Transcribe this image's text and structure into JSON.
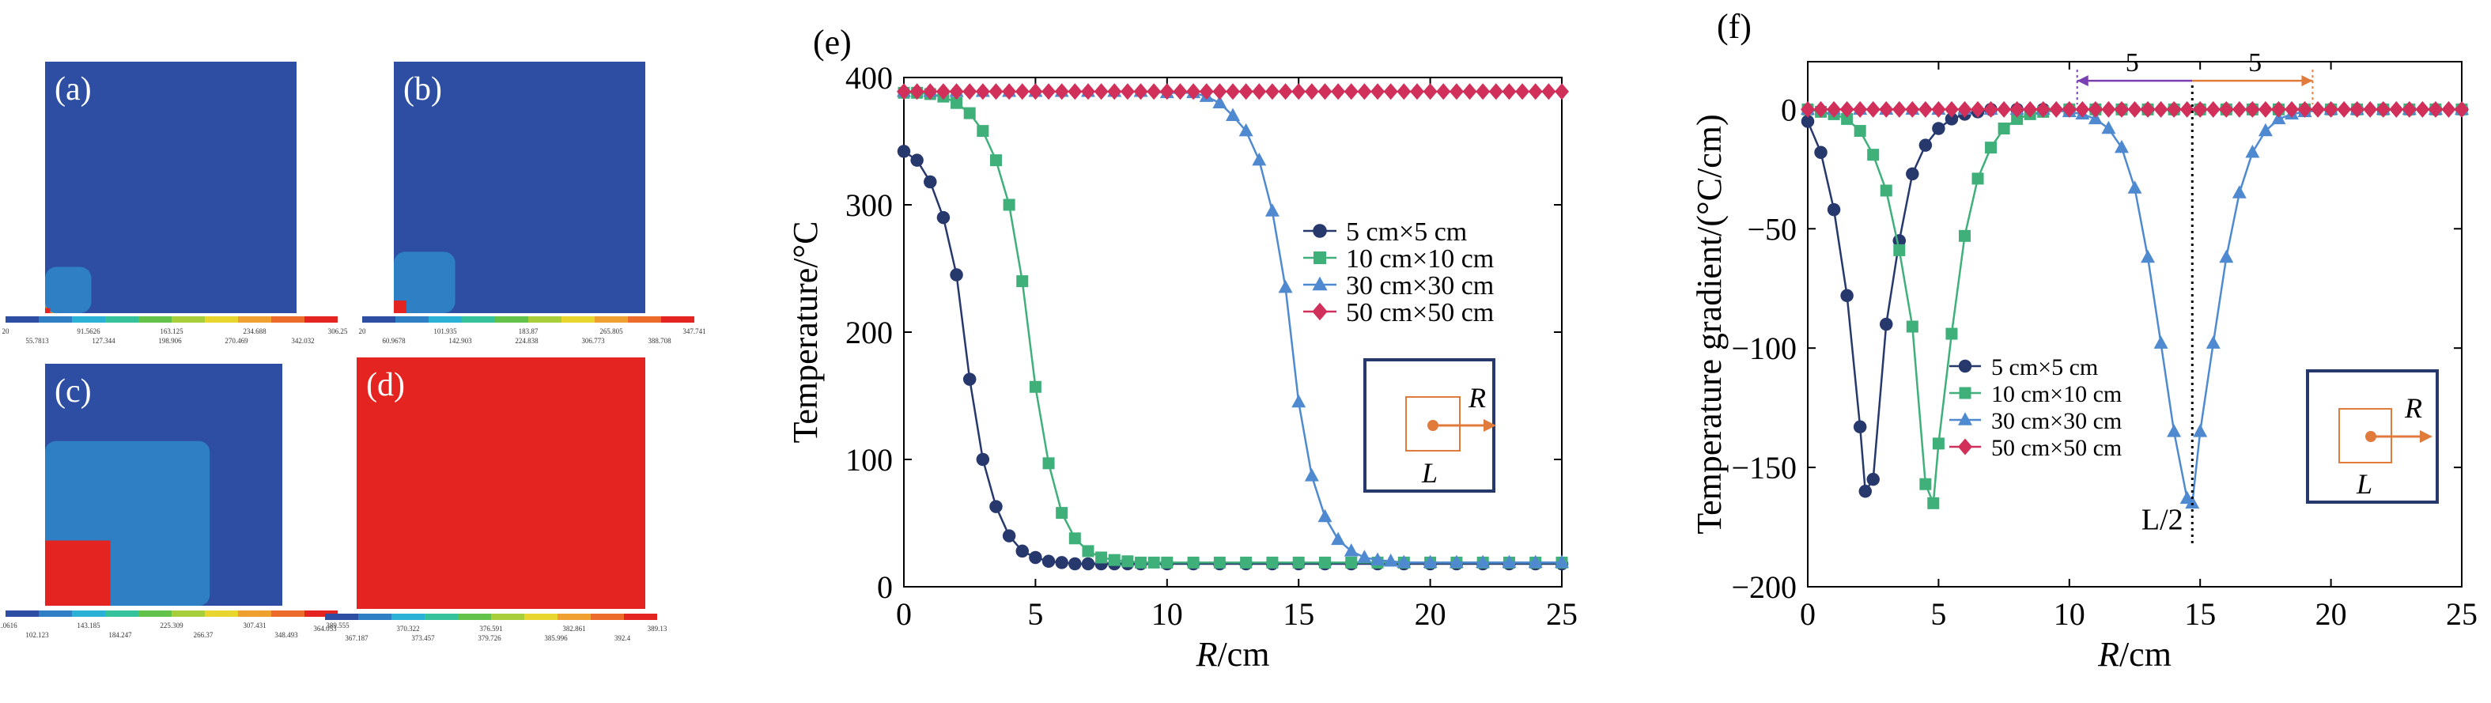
{
  "colors": {
    "navy": "#27386d",
    "green": "#3fb07a",
    "lightblue": "#4f8ad1",
    "magenta": "#d0305a",
    "orange": "#e07b3c",
    "purple": "#7a3fb0",
    "contour_blue": "#2d4ea2",
    "contour_red": "#e32421"
  },
  "thumbnails": [
    {
      "label": "(a)",
      "hot_fraction": 0.04,
      "colorbar_row1": [
        "20",
        "91.5626",
        "163.125",
        "234.688",
        "306.25"
      ],
      "colorbar_row2": [
        "55.7813",
        "127.344",
        "198.906",
        "270.469",
        "342.032"
      ]
    },
    {
      "label": "(b)",
      "hot_fraction": 0.1,
      "colorbar_row1": [
        "20",
        "101.935",
        "183.87",
        "265.805",
        "347.741"
      ],
      "colorbar_row2": [
        "60.9678",
        "142.903",
        "224.838",
        "306.773",
        "388.708"
      ]
    },
    {
      "label": "(c)",
      "hot_fraction": 0.55,
      "colorbar_row1": [
        "61.0616",
        "143.185",
        "225.309",
        "307.431",
        "389.555"
      ],
      "colorbar_row2": [
        "102.123",
        "184.247",
        "266.37",
        "348.493"
      ]
    },
    {
      "label": "(d)",
      "hot_fraction": 1.0,
      "colorbar_row1": [
        "364.053",
        "370.322",
        "376.591",
        "382.861",
        "389.13"
      ],
      "colorbar_row2": [
        "367.187",
        "373.457",
        "379.726",
        "385.996",
        "392.4"
      ]
    }
  ],
  "chart_data": [
    {
      "type": "line",
      "panel_label": "(e)",
      "xlabel_italic": "R",
      "xlabel_unit": "/cm",
      "ylabel": "Temperature/°C",
      "xlim": [
        0,
        25
      ],
      "ylim": [
        0,
        400
      ],
      "xticks": [
        0,
        5,
        10,
        15,
        20,
        25
      ],
      "yticks": [
        0,
        100,
        200,
        300,
        400
      ],
      "legend_position": "right-middle",
      "series": [
        {
          "name": "5 cm×5 cm",
          "marker": "circle",
          "color": "#27386d",
          "x": [
            0,
            0.5,
            1.0,
            1.5,
            2.0,
            2.5,
            3.0,
            3.5,
            4.0,
            4.5,
            5.0,
            5.5,
            6.0,
            6.5,
            7.0,
            7.5,
            8.0,
            8.5,
            9.0,
            10,
            11,
            12,
            13,
            14,
            15,
            16,
            17,
            18,
            19,
            20,
            21,
            22,
            23,
            24,
            25
          ],
          "y": [
            342,
            335,
            318,
            290,
            245,
            163,
            100,
            63,
            40,
            28,
            23,
            20,
            19,
            18,
            18,
            18,
            18,
            18,
            18,
            18,
            18,
            18,
            18,
            18,
            18,
            18,
            18,
            18,
            18,
            18,
            18,
            18,
            18,
            18,
            18
          ]
        },
        {
          "name": "10 cm×10 cm",
          "marker": "square",
          "color": "#3fb07a",
          "x": [
            0,
            0.5,
            1.0,
            1.5,
            2.0,
            2.5,
            3.0,
            3.5,
            4.0,
            4.5,
            5.0,
            5.5,
            6.0,
            6.5,
            7.0,
            7.5,
            8.0,
            8.5,
            9.0,
            9.5,
            10,
            11,
            12,
            13,
            14,
            15,
            16,
            17,
            18,
            19,
            20,
            21,
            22,
            23,
            24,
            25
          ],
          "y": [
            388,
            388,
            387,
            385,
            380,
            372,
            358,
            335,
            300,
            240,
            157,
            97,
            58,
            38,
            28,
            23,
            21,
            20,
            19,
            19,
            19,
            19,
            19,
            19,
            19,
            19,
            19,
            19,
            19,
            19,
            19,
            19,
            19,
            19,
            19,
            19
          ]
        },
        {
          "name": "30 cm×30 cm",
          "marker": "triangle",
          "color": "#4f8ad1",
          "x": [
            0,
            1,
            2,
            3,
            4,
            5,
            6,
            7,
            8,
            9,
            10,
            11,
            11.5,
            12,
            12.5,
            13,
            13.5,
            14,
            14.5,
            15,
            15.5,
            16,
            16.5,
            17,
            17.5,
            18,
            18.5,
            19,
            20,
            21,
            22,
            23,
            24,
            25
          ],
          "y": [
            389,
            389,
            389,
            389,
            389,
            389,
            389,
            389,
            389,
            389,
            388,
            388,
            385,
            380,
            370,
            358,
            335,
            295,
            235,
            145,
            87,
            55,
            37,
            28,
            23,
            21,
            20,
            19,
            19,
            19,
            19,
            19,
            19,
            19
          ]
        },
        {
          "name": "50 cm×50 cm",
          "marker": "diamond",
          "color": "#d0305a",
          "x": [
            0,
            0.5,
            1,
            1.5,
            2,
            2.5,
            3,
            3.5,
            4,
            4.5,
            5,
            5.5,
            6,
            6.5,
            7,
            7.5,
            8,
            8.5,
            9,
            9.5,
            10,
            10.5,
            11,
            11.5,
            12,
            12.5,
            13,
            13.5,
            14,
            14.5,
            15,
            15.5,
            16,
            16.5,
            17,
            17.5,
            18,
            18.5,
            19,
            19.5,
            20,
            20.5,
            21,
            21.5,
            22,
            22.5,
            23,
            23.5,
            24,
            24.5,
            25
          ],
          "y": [
            389,
            389,
            389,
            389,
            389,
            389,
            389,
            389,
            389,
            389,
            389,
            389,
            389,
            389,
            389,
            389,
            389,
            389,
            389,
            389,
            389,
            389,
            389,
            389,
            389,
            389,
            389,
            389,
            389,
            389,
            389,
            389,
            389,
            389,
            389,
            389,
            389,
            389,
            389,
            389,
            389,
            389,
            389,
            389,
            389,
            389,
            389,
            389,
            389,
            389,
            389
          ]
        }
      ],
      "inset": {
        "R": "R",
        "L": "L"
      }
    },
    {
      "type": "line",
      "panel_label": "(f)",
      "xlabel_italic": "R",
      "xlabel_unit": "/cm",
      "ylabel": "Temperature gradient/(°C/cm)",
      "xlim": [
        0,
        25
      ],
      "ylim": [
        -200,
        20
      ],
      "xticks": [
        0,
        5,
        10,
        15,
        20,
        25
      ],
      "yticks": [
        -200,
        -150,
        -100,
        -50,
        0
      ],
      "legend_position": "lower-left",
      "annotations": {
        "half_L": "L/2",
        "span_left": "5",
        "span_right": "5",
        "half_L_x": 14.7
      },
      "series": [
        {
          "name": "5 cm×5 cm",
          "marker": "circle",
          "color": "#27386d",
          "x": [
            0,
            0.5,
            1.0,
            1.5,
            2.0,
            2.2,
            2.5,
            3.0,
            3.5,
            4.0,
            4.5,
            5.0,
            5.5,
            6.0,
            6.5,
            7.0,
            8,
            9,
            10,
            11,
            12,
            13,
            14,
            15,
            16,
            17,
            18,
            19,
            20,
            21,
            22,
            23,
            24,
            25
          ],
          "y": [
            -5,
            -18,
            -42,
            -78,
            -133,
            -160,
            -155,
            -90,
            -55,
            -27,
            -15,
            -8,
            -4,
            -2,
            -1,
            0,
            0,
            0,
            0,
            0,
            0,
            0,
            0,
            0,
            0,
            0,
            0,
            0,
            0,
            0,
            0,
            0,
            0,
            0
          ]
        },
        {
          "name": "10 cm×10 cm",
          "marker": "square",
          "color": "#3fb07a",
          "x": [
            0,
            0.5,
            1.0,
            1.5,
            2.0,
            2.5,
            3.0,
            3.5,
            4.0,
            4.5,
            4.8,
            5.0,
            5.5,
            6.0,
            6.5,
            7.0,
            7.5,
            8.0,
            8.5,
            9.0,
            10,
            11,
            12,
            13,
            14,
            15,
            16,
            17,
            18,
            19,
            20,
            21,
            22,
            23,
            24,
            25
          ],
          "y": [
            0,
            -1,
            -2,
            -4,
            -9,
            -19,
            -34,
            -59,
            -91,
            -157,
            -165,
            -140,
            -94,
            -53,
            -29,
            -16,
            -8,
            -4,
            -2,
            -1,
            0,
            0,
            0,
            0,
            0,
            0,
            0,
            0,
            0,
            0,
            0,
            0,
            0,
            0,
            0,
            0
          ]
        },
        {
          "name": "30 cm×30 cm",
          "marker": "triangle",
          "color": "#4f8ad1",
          "x": [
            0,
            1,
            2,
            3,
            4,
            5,
            6,
            7,
            8,
            9,
            10,
            10.5,
            11,
            11.5,
            12,
            12.5,
            13,
            13.5,
            14,
            14.5,
            14.7,
            15,
            15.5,
            16,
            16.5,
            17,
            17.5,
            18,
            18.5,
            19,
            20,
            21,
            22,
            23,
            24,
            25
          ],
          "y": [
            0,
            0,
            0,
            0,
            0,
            0,
            0,
            0,
            0,
            0,
            -1,
            -2,
            -4,
            -8,
            -16,
            -33,
            -62,
            -98,
            -135,
            -163,
            -165,
            -135,
            -98,
            -62,
            -35,
            -18,
            -9,
            -4,
            -2,
            -1,
            0,
            0,
            0,
            0,
            0,
            0
          ]
        },
        {
          "name": "50 cm×50 cm",
          "marker": "diamond",
          "color": "#d0305a",
          "x": [
            0,
            0.5,
            1,
            1.5,
            2,
            2.5,
            3,
            3.5,
            4,
            4.5,
            5,
            5.5,
            6,
            6.5,
            7,
            7.5,
            8,
            8.5,
            9,
            9.5,
            10,
            10.5,
            11,
            11.5,
            12,
            12.5,
            13,
            13.5,
            14,
            14.5,
            15,
            15.5,
            16,
            16.5,
            17,
            17.5,
            18,
            18.5,
            19,
            19.5,
            20,
            20.5,
            21,
            21.5,
            22,
            22.5,
            23,
            23.5,
            24,
            24.5,
            25
          ],
          "y": [
            0,
            0,
            0,
            0,
            0,
            0,
            0,
            0,
            0,
            0,
            0,
            0,
            0,
            0,
            0,
            0,
            0,
            0,
            0,
            0,
            0,
            0,
            0,
            0,
            0,
            0,
            0,
            0,
            0,
            0,
            0,
            0,
            0,
            0,
            0,
            0,
            0,
            0,
            0,
            0,
            0,
            0,
            0,
            0,
            0,
            0,
            0,
            0,
            0,
            0,
            0
          ]
        }
      ],
      "inset": {
        "R": "R",
        "L": "L"
      }
    }
  ]
}
